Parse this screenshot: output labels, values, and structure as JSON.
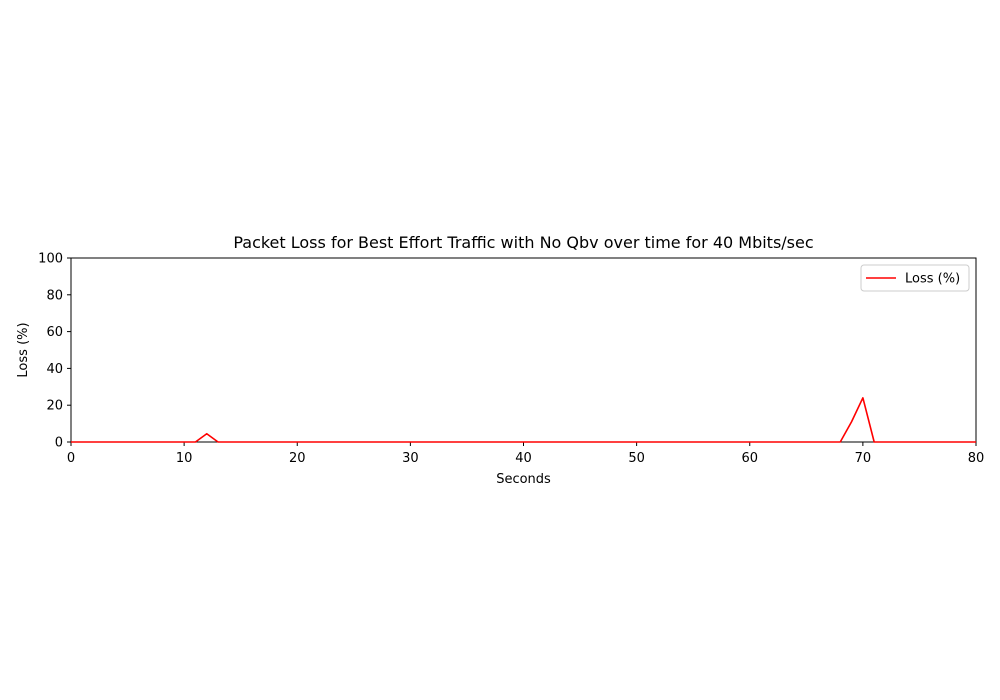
{
  "chart_data": {
    "type": "line",
    "title": "Packet Loss for Best Effort Traffic with No Qbv over time for 40 Mbits/sec",
    "xlabel": "Seconds",
    "ylabel": "Loss (%)",
    "xlim": [
      0,
      80
    ],
    "ylim": [
      0,
      100
    ],
    "xticks": [
      "0",
      "10",
      "20",
      "30",
      "40",
      "50",
      "60",
      "70",
      "80"
    ],
    "yticks": [
      "0",
      "20",
      "40",
      "60",
      "80",
      "100"
    ],
    "grid": false,
    "legend_position": "top-right",
    "series": [
      {
        "name": "Loss (%)",
        "color": "#ff0000",
        "x": [
          0,
          1,
          2,
          3,
          4,
          5,
          6,
          7,
          8,
          9,
          10,
          11,
          12,
          13,
          14,
          15,
          16,
          17,
          18,
          19,
          20,
          21,
          22,
          23,
          24,
          25,
          26,
          27,
          28,
          29,
          30,
          31,
          32,
          33,
          34,
          35,
          36,
          37,
          38,
          39,
          40,
          41,
          42,
          43,
          44,
          45,
          46,
          47,
          48,
          49,
          50,
          51,
          52,
          53,
          54,
          55,
          56,
          57,
          58,
          59,
          60,
          61,
          62,
          63,
          64,
          65,
          66,
          67,
          68,
          69,
          70,
          71,
          72,
          73,
          74,
          75,
          76,
          77,
          78,
          79,
          80
        ],
        "values": [
          0,
          0,
          0,
          0,
          0,
          0,
          0,
          0,
          0,
          0,
          0,
          0,
          4.5,
          0,
          0,
          0,
          0,
          0,
          0,
          0,
          0,
          0,
          0,
          0,
          0,
          0,
          0,
          0,
          0,
          0,
          0,
          0,
          0,
          0,
          0,
          0,
          0,
          0,
          0,
          0,
          0,
          0,
          0,
          0,
          0,
          0,
          0,
          0,
          0,
          0,
          0,
          0,
          0,
          0,
          0,
          0,
          0,
          0,
          0,
          0,
          0,
          0,
          0,
          0,
          0,
          0,
          0,
          0,
          0,
          11,
          24,
          0,
          0,
          0,
          0,
          0,
          0,
          0,
          0,
          0,
          0
        ]
      }
    ]
  }
}
